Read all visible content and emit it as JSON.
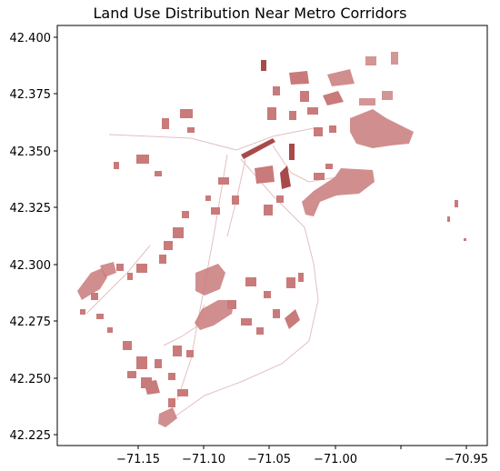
{
  "title": "Land Use Distribution Near Metro Corridors",
  "map": {
    "fill_color": "#c97a7a",
    "dark_fill_color": "#a84a4a",
    "x_ticks": [
      "−71.15",
      "−71.10",
      "−71.05",
      "−71.00",
      "−70.95"
    ],
    "y_ticks": [
      "42.400",
      "42.375",
      "42.350",
      "42.325",
      "42.300",
      "42.275",
      "42.250",
      "42.225"
    ]
  }
}
